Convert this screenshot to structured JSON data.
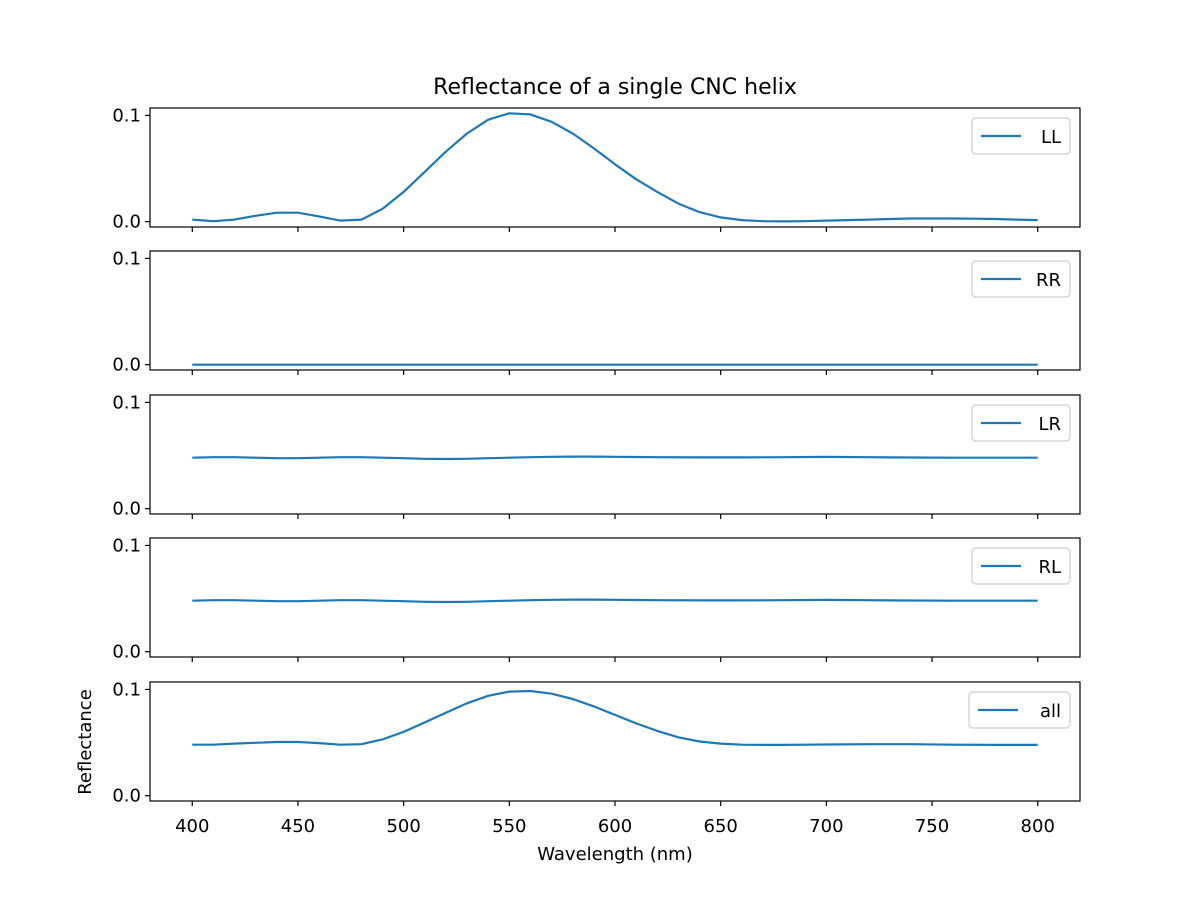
{
  "chart_data": {
    "type": "line",
    "title": "Reflectance of a single CNC helix",
    "xlabel": "Wavelength (nm)",
    "ylabel": "Reflectance",
    "xlim": [
      380,
      820
    ],
    "ylim": [
      -0.005,
      0.107
    ],
    "x_ticks": [
      400,
      450,
      500,
      550,
      600,
      650,
      700,
      750,
      800
    ],
    "y_ticks": [
      0.0,
      0.1
    ],
    "y_tick_labels": [
      "0.0",
      "0.1"
    ],
    "shared_x": true,
    "grid": false,
    "legend_position": "upper right",
    "line_color": "#1f77b4",
    "panels": [
      {
        "name": "LL",
        "x": [
          400,
          410,
          420,
          430,
          440,
          450,
          460,
          470,
          480,
          490,
          500,
          510,
          520,
          530,
          540,
          550,
          560,
          570,
          580,
          590,
          600,
          610,
          620,
          630,
          640,
          650,
          660,
          670,
          680,
          690,
          700,
          710,
          720,
          730,
          740,
          750,
          760,
          770,
          780,
          790,
          800
        ],
        "y": [
          0.002,
          0.0005,
          0.002,
          0.0055,
          0.0085,
          0.0085,
          0.005,
          0.001,
          0.002,
          0.012,
          0.028,
          0.047,
          0.066,
          0.083,
          0.096,
          0.102,
          0.101,
          0.094,
          0.083,
          0.069,
          0.054,
          0.04,
          0.028,
          0.017,
          0.009,
          0.004,
          0.0015,
          0.0005,
          0.0003,
          0.0005,
          0.001,
          0.0015,
          0.002,
          0.0025,
          0.003,
          0.003,
          0.003,
          0.0028,
          0.0025,
          0.002,
          0.0015
        ]
      },
      {
        "name": "RR",
        "x": [
          400,
          500,
          600,
          700,
          800
        ],
        "y": [
          0.0,
          0.0,
          0.0,
          0.0,
          0.0
        ]
      },
      {
        "name": "LR",
        "x": [
          400,
          410,
          420,
          430,
          440,
          450,
          460,
          470,
          480,
          490,
          500,
          510,
          520,
          530,
          540,
          550,
          560,
          570,
          580,
          590,
          600,
          620,
          640,
          660,
          680,
          700,
          720,
          740,
          760,
          780,
          800
        ],
        "y": [
          0.048,
          0.0485,
          0.0485,
          0.048,
          0.0475,
          0.0475,
          0.048,
          0.0485,
          0.0485,
          0.048,
          0.0475,
          0.047,
          0.0468,
          0.047,
          0.0475,
          0.048,
          0.0485,
          0.0488,
          0.049,
          0.049,
          0.0488,
          0.0485,
          0.0483,
          0.0483,
          0.0485,
          0.0487,
          0.0485,
          0.0482,
          0.048,
          0.048,
          0.048
        ]
      },
      {
        "name": "RL",
        "x": [
          400,
          410,
          420,
          430,
          440,
          450,
          460,
          470,
          480,
          490,
          500,
          510,
          520,
          530,
          540,
          550,
          560,
          570,
          580,
          590,
          600,
          620,
          640,
          660,
          680,
          700,
          720,
          740,
          760,
          780,
          800
        ],
        "y": [
          0.048,
          0.0485,
          0.0485,
          0.048,
          0.0475,
          0.0475,
          0.048,
          0.0485,
          0.0485,
          0.048,
          0.0475,
          0.047,
          0.0468,
          0.047,
          0.0475,
          0.048,
          0.0485,
          0.0488,
          0.049,
          0.049,
          0.0488,
          0.0485,
          0.0483,
          0.0483,
          0.0485,
          0.0487,
          0.0485,
          0.0482,
          0.048,
          0.048,
          0.048
        ]
      },
      {
        "name": "all",
        "x": [
          400,
          410,
          420,
          430,
          440,
          450,
          460,
          470,
          480,
          490,
          500,
          510,
          520,
          530,
          540,
          550,
          560,
          570,
          580,
          590,
          600,
          610,
          620,
          630,
          640,
          650,
          660,
          670,
          680,
          690,
          700,
          720,
          740,
          760,
          780,
          800
        ],
        "y": [
          0.048,
          0.048,
          0.049,
          0.0498,
          0.0505,
          0.0505,
          0.0495,
          0.048,
          0.0485,
          0.053,
          0.06,
          0.069,
          0.078,
          0.087,
          0.094,
          0.098,
          0.0985,
          0.096,
          0.091,
          0.084,
          0.076,
          0.068,
          0.061,
          0.055,
          0.051,
          0.049,
          0.048,
          0.0478,
          0.0478,
          0.048,
          0.0482,
          0.0485,
          0.0485,
          0.048,
          0.0478,
          0.0478
        ]
      }
    ]
  }
}
